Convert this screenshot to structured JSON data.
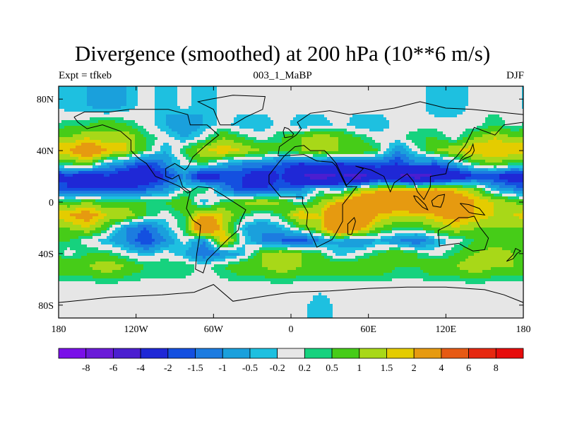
{
  "chart_data": {
    "type": "heatmap",
    "title": "Divergence (smoothed) at 200 hPa (10**6 m/s)",
    "subtitle_left": "Expt = tfkeb",
    "subtitle_center": "003_1_MaBP",
    "subtitle_right": "DJF",
    "x_ticks": [
      "180",
      "120W",
      "60W",
      "0",
      "60E",
      "120E",
      "180"
    ],
    "x_tick_values": [
      -180,
      -120,
      -60,
      0,
      60,
      120,
      180
    ],
    "y_ticks": [
      "80N",
      "40N",
      "0",
      "40S",
      "80S"
    ],
    "y_tick_values": [
      80,
      40,
      0,
      -40,
      -80
    ],
    "xlim": [
      -180,
      180
    ],
    "ylim": [
      -90,
      90
    ],
    "colorbar": {
      "labels": [
        "-8",
        "-6",
        "-4",
        "-2",
        "-1.5",
        "-1",
        "-0.5",
        "-0.2",
        "0.2",
        "0.5",
        "1",
        "1.5",
        "2",
        "4",
        "6",
        "8"
      ],
      "levels": [
        -8,
        -6,
        -4,
        -2,
        -1.5,
        -1,
        -0.5,
        -0.2,
        0.2,
        0.5,
        1,
        1.5,
        2,
        4,
        6,
        8
      ],
      "colors": [
        "#7a10e8",
        "#6a1ad8",
        "#4b1ed0",
        "#1f28d6",
        "#1450e0",
        "#1c7ce0",
        "#1aa0dc",
        "#1ec0e0",
        "#e6e6e6",
        "#16d27e",
        "#46cc18",
        "#a8d818",
        "#e4cc00",
        "#e69a10",
        "#e65a14",
        "#e62810",
        "#e60c0c"
      ]
    },
    "bands": [
      {
        "lat": 75,
        "values": [
          -0.5,
          -0.5,
          -1,
          -0.5,
          0,
          -0.5,
          0,
          -0.5,
          0,
          0,
          0,
          0,
          0,
          0,
          0,
          0,
          0,
          0,
          0,
          -0.5,
          -0.5,
          0,
          0,
          0
        ]
      },
      {
        "lat": 60,
        "values": [
          0.5,
          0.5,
          1,
          0.5,
          0,
          -0.5,
          -1,
          -0.5,
          0,
          -0.5,
          -0.5,
          0,
          -0.5,
          -0.5,
          0,
          -0.5,
          -0.5,
          0,
          0,
          0,
          0,
          0,
          0.5,
          0
        ]
      },
      {
        "lat": 50,
        "values": [
          1,
          1.5,
          1,
          1.5,
          0.5,
          0,
          -0.5,
          0,
          1,
          0.5,
          0,
          0.5,
          1,
          1.5,
          1,
          0.5,
          0,
          0,
          0.5,
          0.5,
          0,
          1,
          1.5,
          1
        ]
      },
      {
        "lat": 40,
        "values": [
          2,
          3,
          2,
          1.5,
          0.5,
          -0.5,
          0.5,
          1.5,
          2,
          1.5,
          1,
          0.5,
          1,
          1.5,
          1,
          1,
          0.5,
          -1,
          0,
          1,
          1.5,
          2,
          2,
          2
        ]
      },
      {
        "lat": 30,
        "values": [
          0.5,
          1,
          -0.5,
          -1,
          -2,
          -1,
          0,
          0.5,
          -0.5,
          -1,
          -1,
          -1.5,
          -2,
          -1.5,
          -2,
          -1.5,
          -1.5,
          -2,
          -1,
          -1.5,
          -0.5,
          0.5,
          1,
          0.5
        ]
      },
      {
        "lat": 20,
        "values": [
          -2,
          -3,
          -2,
          -3,
          -3,
          -2,
          -1,
          -3,
          -2,
          -2,
          -3,
          -2,
          -4,
          -5,
          -4,
          -5,
          -3,
          -4,
          -5,
          -4,
          -3,
          -2,
          -2,
          -3
        ]
      },
      {
        "lat": 10,
        "values": [
          -2,
          -2,
          -2,
          -2,
          -1.5,
          -1,
          0,
          0.5,
          -1,
          -2,
          -2,
          -1.5,
          -1,
          0,
          -0.5,
          1,
          1.5,
          2,
          1.5,
          2,
          1.5,
          1,
          -0.5,
          -1
        ]
      },
      {
        "lat": 0,
        "values": [
          0.5,
          1,
          0.5,
          0.5,
          0.5,
          0.5,
          1,
          -0.5,
          0.5,
          1,
          1.5,
          1,
          0,
          1,
          2,
          3,
          4,
          3,
          4,
          3,
          3.5,
          2,
          1.5,
          1
        ]
      },
      {
        "lat": -10,
        "values": [
          2,
          2.5,
          1.5,
          1.5,
          0.5,
          0,
          0.5,
          2,
          1.5,
          0.5,
          0,
          0.5,
          2,
          1.5,
          4,
          3,
          2,
          1.5,
          1.5,
          2,
          2.5,
          2,
          1.5,
          1.5
        ]
      },
      {
        "lat": -20,
        "values": [
          1,
          1.5,
          0.5,
          -1,
          -1.5,
          -0.5,
          0.5,
          4,
          1.5,
          -0.5,
          -1,
          -0.5,
          0.5,
          1.5,
          4,
          2.5,
          1,
          0.5,
          0.5,
          1,
          1.5,
          1,
          1,
          1
        ]
      },
      {
        "lat": -30,
        "values": [
          0.5,
          0,
          -0.5,
          -1,
          -2,
          -1,
          0,
          -1,
          2,
          0,
          -1,
          -1.5,
          -2,
          -1,
          -0.5,
          -1,
          -0.5,
          -1,
          -1.5,
          -0.5,
          0,
          0.5,
          0.5,
          0.5
        ]
      },
      {
        "lat": -40,
        "values": [
          0,
          0.5,
          0.5,
          0,
          -0.5,
          0,
          -0.5,
          -1.5,
          -1,
          -0.5,
          1,
          1.5,
          1,
          0.5,
          -0.5,
          0,
          0.5,
          1,
          0.5,
          0,
          0.5,
          1,
          1.5,
          1
        ]
      },
      {
        "lat": -50,
        "values": [
          1,
          1,
          1.5,
          1,
          0.5,
          0.5,
          0.5,
          0,
          0.5,
          1,
          1,
          1.5,
          1,
          1,
          1,
          1,
          1,
          0.5,
          0.5,
          1,
          1,
          1.5,
          1,
          1
        ]
      },
      {
        "lat": -65,
        "values": [
          0,
          0,
          0,
          0,
          0,
          0,
          0,
          0,
          0,
          0,
          0,
          0,
          0,
          0,
          0,
          0,
          0,
          0,
          0,
          0,
          0,
          0,
          0,
          0
        ]
      },
      {
        "lat": -80,
        "values": [
          0,
          0,
          0,
          0,
          0,
          0,
          0,
          0,
          0,
          0,
          0,
          0,
          0,
          -0.5,
          0,
          0,
          0,
          0,
          0,
          0,
          0,
          0,
          0,
          0
        ]
      }
    ]
  }
}
